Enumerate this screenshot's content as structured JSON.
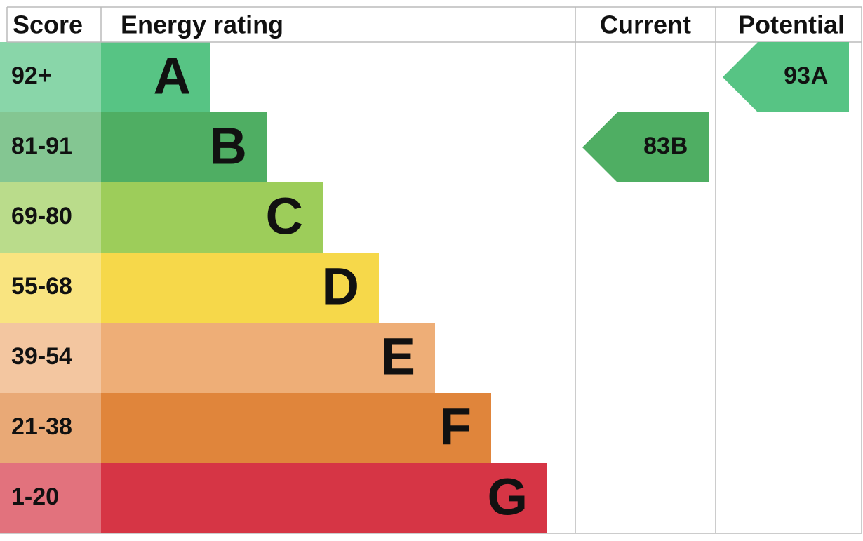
{
  "header": {
    "score": "Score",
    "energy_rating": "Energy rating",
    "current": "Current",
    "potential": "Potential"
  },
  "rows": [
    {
      "score": "92+",
      "rating": "A",
      "color": "#57c484"
    },
    {
      "score": "81-91",
      "rating": "B",
      "color": "#4fae63"
    },
    {
      "score": "69-80",
      "rating": "C",
      "color": "#9dcd5a"
    },
    {
      "score": "55-68",
      "rating": "D",
      "color": "#f6d84a"
    },
    {
      "score": "39-54",
      "rating": "E",
      "color": "#eeae77"
    },
    {
      "score": "21-38",
      "rating": "F",
      "color": "#e0853b"
    },
    {
      "score": "1-20",
      "rating": "G",
      "color": "#d63545"
    }
  ],
  "current": {
    "score": 83,
    "rating": "B"
  },
  "potential": {
    "score": 93,
    "rating": "A"
  }
}
